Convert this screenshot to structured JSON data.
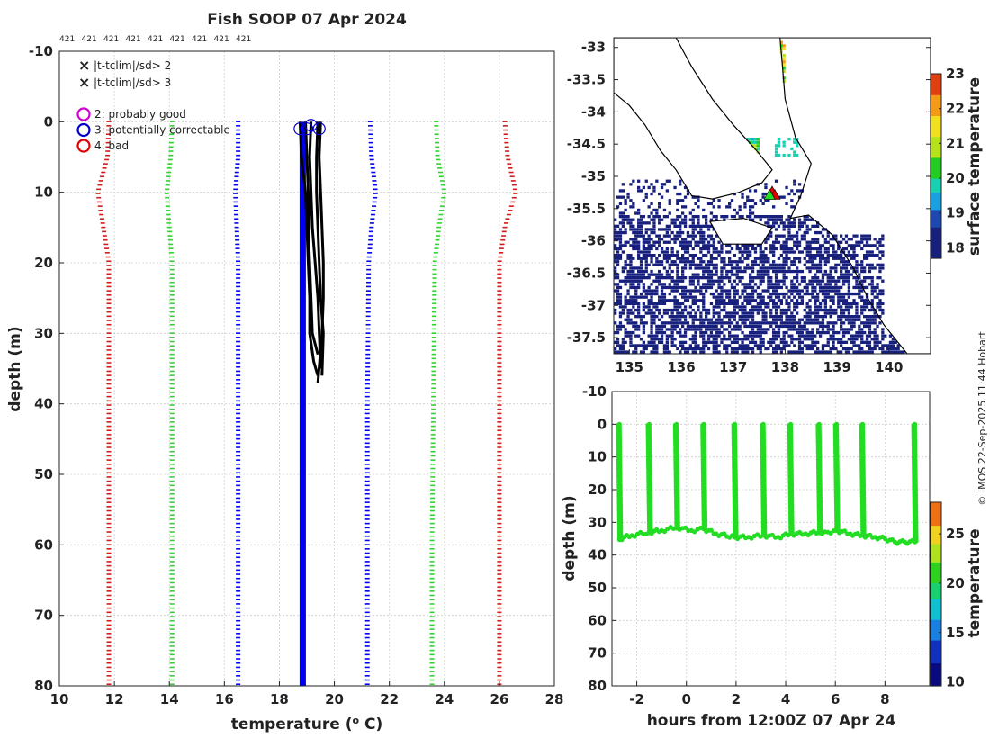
{
  "title": "Fish SOOP 07 Apr 2024",
  "copyright": "© IMOS 22-Sep-2025 11:44 Hobart",
  "colors": {
    "clim_sd2": "#2fd42f",
    "clim_sd3": "#d41a1a",
    "profile_mean": "#0000ee",
    "profile": "#000000",
    "flag_good": "#d000d0",
    "flag_correctable": "#0000cc",
    "flag_bad": "#e00000",
    "land_outline": "#000000",
    "sst_cold": "#1c2a8c",
    "depth_points": "#22dd22"
  },
  "chart_data": [
    {
      "id": "profile",
      "type": "line",
      "title": "Fish SOOP 07 Apr 2024",
      "xlabel": "temperature (o C)",
      "ylabel": "depth (m)",
      "xlim": [
        10,
        28
      ],
      "ylim": [
        80,
        -10
      ],
      "xticks": [
        "10",
        "12",
        "14",
        "16",
        "18",
        "20",
        "22",
        "24",
        "26",
        "28"
      ],
      "yticks": [
        "-10",
        "0",
        "10",
        "20",
        "30",
        "40",
        "50",
        "60",
        "70",
        "80"
      ],
      "top_labels": [
        "421",
        "421",
        "421",
        "421",
        "421",
        "421",
        "421",
        "421",
        "421"
      ],
      "legend_markers": [
        {
          "symbol": "×",
          "label": "|t-tclim|/sd> 2",
          "color_key": "clim_sd2"
        },
        {
          "symbol": "×",
          "label": "|t-tclim|/sd> 3",
          "color_key": "clim_sd3"
        }
      ],
      "legend_flags": [
        {
          "label": "2: probably good",
          "color_key": "flag_good"
        },
        {
          "label": "3: potentially correctable",
          "color_key": "flag_correctable"
        },
        {
          "label": "4: bad",
          "color_key": "flag_bad"
        }
      ],
      "series": [
        {
          "name": "clim -3sd",
          "style": "dotted",
          "color_key": "clim_sd3",
          "points": [
            [
              11.8,
              0
            ],
            [
              11.75,
              5
            ],
            [
              11.4,
              10
            ],
            [
              11.6,
              15
            ],
            [
              11.8,
              20
            ],
            [
              11.8,
              40
            ],
            [
              11.8,
              60
            ],
            [
              11.8,
              80
            ]
          ]
        },
        {
          "name": "clim -2sd",
          "style": "dotted",
          "color_key": "clim_sd2",
          "points": [
            [
              14.1,
              0
            ],
            [
              14.05,
              5
            ],
            [
              13.9,
              10
            ],
            [
              14.0,
              15
            ],
            [
              14.1,
              20
            ],
            [
              14.1,
              40
            ],
            [
              14.1,
              60
            ],
            [
              14.1,
              80
            ]
          ]
        },
        {
          "name": "clim -1sd",
          "style": "dotted",
          "color_key": "profile_mean",
          "points": [
            [
              16.5,
              0
            ],
            [
              16.5,
              5
            ],
            [
              16.4,
              10
            ],
            [
              16.45,
              15
            ],
            [
              16.5,
              20
            ],
            [
              16.5,
              40
            ],
            [
              16.5,
              60
            ],
            [
              16.5,
              80
            ]
          ]
        },
        {
          "name": "clim +1sd",
          "style": "dotted",
          "color_key": "profile_mean",
          "points": [
            [
              21.3,
              0
            ],
            [
              21.35,
              5
            ],
            [
              21.5,
              10
            ],
            [
              21.35,
              15
            ],
            [
              21.25,
              20
            ],
            [
              21.2,
              40
            ],
            [
              21.2,
              60
            ],
            [
              21.2,
              80
            ]
          ]
        },
        {
          "name": "clim +2sd",
          "style": "dotted",
          "color_key": "clim_sd2",
          "points": [
            [
              23.7,
              0
            ],
            [
              23.75,
              5
            ],
            [
              24.0,
              10
            ],
            [
              23.8,
              15
            ],
            [
              23.65,
              20
            ],
            [
              23.6,
              40
            ],
            [
              23.55,
              60
            ],
            [
              23.55,
              80
            ]
          ]
        },
        {
          "name": "clim +3sd",
          "style": "dotted",
          "color_key": "clim_sd3",
          "points": [
            [
              26.2,
              0
            ],
            [
              26.3,
              5
            ],
            [
              26.6,
              10
            ],
            [
              26.2,
              15
            ],
            [
              26.0,
              20
            ],
            [
              26.0,
              40
            ],
            [
              26.0,
              60
            ],
            [
              26.0,
              80
            ]
          ]
        },
        {
          "name": "clim mean",
          "style": "solid",
          "color_key": "profile_mean",
          "points": [
            [
              18.85,
              0
            ],
            [
              18.85,
              40
            ],
            [
              18.85,
              80
            ]
          ]
        }
      ],
      "profiles": [
        [
          [
            18.75,
            0
          ],
          [
            18.8,
            5
          ],
          [
            18.95,
            10
          ],
          [
            19.0,
            15
          ],
          [
            19.05,
            20
          ],
          [
            19.1,
            25
          ],
          [
            19.1,
            30
          ],
          [
            19.25,
            34
          ],
          [
            19.4,
            36
          ]
        ],
        [
          [
            18.95,
            0
          ],
          [
            19.0,
            5
          ],
          [
            19.05,
            10
          ],
          [
            19.05,
            15
          ],
          [
            19.1,
            20
          ],
          [
            19.15,
            25
          ],
          [
            19.2,
            30
          ],
          [
            19.4,
            33
          ]
        ],
        [
          [
            19.15,
            0
          ],
          [
            19.1,
            5
          ],
          [
            19.15,
            10
          ],
          [
            19.2,
            15
          ],
          [
            19.3,
            20
          ],
          [
            19.4,
            25
          ],
          [
            19.45,
            30
          ],
          [
            19.5,
            35
          ]
        ],
        [
          [
            19.4,
            0
          ],
          [
            19.35,
            5
          ],
          [
            19.35,
            10
          ],
          [
            19.4,
            15
          ],
          [
            19.45,
            20
          ],
          [
            19.5,
            25
          ],
          [
            19.6,
            30
          ],
          [
            19.55,
            36
          ]
        ],
        [
          [
            19.5,
            0
          ],
          [
            19.45,
            5
          ],
          [
            19.5,
            10
          ],
          [
            19.55,
            15
          ],
          [
            19.6,
            20
          ],
          [
            19.6,
            25
          ],
          [
            19.55,
            30
          ],
          [
            19.4,
            37
          ]
        ]
      ],
      "surface_flags": [
        [
          18.75,
          1
        ],
        [
          19.0,
          1
        ],
        [
          19.45,
          1
        ],
        [
          19.15,
          0.5
        ]
      ]
    },
    {
      "id": "map",
      "type": "heatmap",
      "colorbar_label": "surface temperature",
      "xlim": [
        134.7,
        140.8
      ],
      "ylim": [
        -37.75,
        -32.85
      ],
      "xticks": [
        "135",
        "136",
        "137",
        "138",
        "139",
        "140"
      ],
      "yticks": [
        "-33",
        "-33.5",
        "-34",
        "-34.5",
        "-35",
        "-35.5",
        "-36",
        "-36.5",
        "-37",
        "-37.5"
      ],
      "colorbar_range": [
        17.7,
        23
      ],
      "colorbar_ticks": [
        "18",
        "19",
        "20",
        "21",
        "22",
        "23"
      ],
      "stations": [
        [
          137.75,
          -35.25
        ],
        [
          137.8,
          -35.3
        ],
        [
          137.7,
          -35.3
        ]
      ]
    },
    {
      "id": "timeseries",
      "type": "scatter",
      "xlabel": "hours from 12:00Z 07 Apr 24",
      "ylabel": "depth (m)",
      "colorbar_label": "temperature",
      "xlim": [
        -3,
        9.8
      ],
      "ylim": [
        80,
        -10
      ],
      "xticks": [
        "-2",
        "0",
        "2",
        "4",
        "6",
        "8"
      ],
      "yticks": [
        "-10",
        "0",
        "10",
        "20",
        "30",
        "40",
        "50",
        "60",
        "70",
        "80"
      ],
      "colorbar_range": [
        9.6,
        28.2
      ],
      "colorbar_ticks": [
        "10",
        "15",
        "20",
        "25"
      ],
      "casts": [
        {
          "t": -2.7,
          "bottom": 35
        },
        {
          "t": -1.5,
          "bottom": 33
        },
        {
          "t": -0.4,
          "bottom": 31.5
        },
        {
          "t": 0.7,
          "bottom": 32
        },
        {
          "t": 1.95,
          "bottom": 34.5
        },
        {
          "t": 3.1,
          "bottom": 34
        },
        {
          "t": 4.2,
          "bottom": 33.5
        },
        {
          "t": 5.35,
          "bottom": 33
        },
        {
          "t": 6.05,
          "bottom": 32.5
        },
        {
          "t": 7.1,
          "bottom": 34
        },
        {
          "t": 9.2,
          "bottom": 36
        }
      ],
      "bottom_track": [
        [
          -2.7,
          35
        ],
        [
          -2.2,
          34
        ],
        [
          -1.5,
          33
        ],
        [
          -1.0,
          32.5
        ],
        [
          -0.4,
          31.5
        ],
        [
          0.2,
          32.5
        ],
        [
          0.7,
          32
        ],
        [
          1.2,
          33.5
        ],
        [
          1.95,
          34.5
        ],
        [
          2.5,
          34.5
        ],
        [
          3.1,
          34
        ],
        [
          3.7,
          34.5
        ],
        [
          4.2,
          33.5
        ],
        [
          4.8,
          33.5
        ],
        [
          5.35,
          33
        ],
        [
          5.7,
          33
        ],
        [
          6.05,
          32.5
        ],
        [
          6.6,
          33.5
        ],
        [
          7.1,
          34
        ],
        [
          7.6,
          34.5
        ],
        [
          8.0,
          35
        ],
        [
          8.4,
          36
        ],
        [
          8.8,
          36
        ],
        [
          9.2,
          36
        ]
      ]
    }
  ]
}
